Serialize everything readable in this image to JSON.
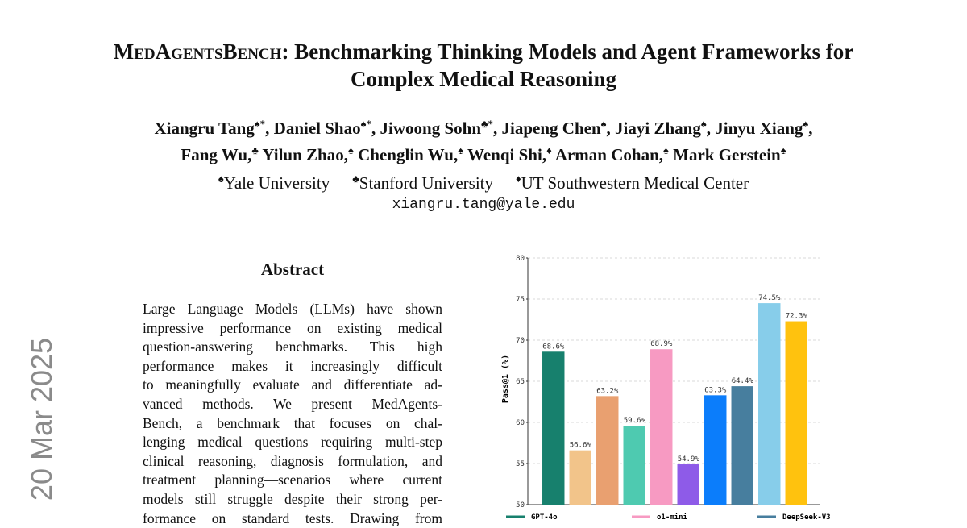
{
  "arxiv_stamp": "20 Mar 2025",
  "title": {
    "name": "MedAgentsBench",
    "rest": ": Benchmarking Thinking Models and Agent Frameworks for Complex Medical Reasoning"
  },
  "authors": {
    "lines": [
      [
        {
          "name": "Xiangru Tang",
          "marks": "♠*",
          "trail": ","
        },
        {
          "name": "Daniel Shao",
          "marks": "♠*",
          "trail": ","
        },
        {
          "name": "Jiwoong Sohn",
          "marks": "♣*",
          "trail": ","
        },
        {
          "name": "Jiapeng Chen",
          "marks": "♠",
          "trail": ","
        },
        {
          "name": "Jiayi Zhang",
          "marks": "♠",
          "trail": ","
        },
        {
          "name": "Jinyu Xiang",
          "marks": "♠",
          "trail": ","
        }
      ],
      [
        {
          "name": "Fang Wu,",
          "marks": "♣"
        },
        {
          "name": "Yilun Zhao,",
          "marks": "♠"
        },
        {
          "name": "Chenglin Wu,",
          "marks": "♠"
        },
        {
          "name": "Wenqi Shi,",
          "marks": "♦"
        },
        {
          "name": "Arman Cohan,",
          "marks": "♠"
        },
        {
          "name": "Mark Gerstein",
          "marks": "♠"
        }
      ]
    ]
  },
  "affiliations": [
    {
      "mark": "♠",
      "name": "Yale University"
    },
    {
      "mark": "♣",
      "name": "Stanford University"
    },
    {
      "mark": "♦",
      "name": "UT Southwestern Medical Center"
    }
  ],
  "email": "xiangru.tang@yale.edu",
  "abstract": {
    "heading": "Abstract",
    "lines": [
      "Large Language Models (LLMs) have shown",
      "impressive performance on existing medical",
      "question-answering benchmarks.  This high",
      "performance makes it increasingly difficult",
      "to meaningfully evaluate and differentiate ad-",
      "vanced methods. We present MedAgents-",
      "Bench, a benchmark that focuses on chal-",
      "lenging medical questions requiring multi-step",
      "clinical reasoning, diagnosis formulation, and",
      "treatment planning—scenarios where current",
      "models still struggle despite their strong per-",
      "formance on standard tests.  Drawing from"
    ]
  },
  "chart_data": {
    "type": "bar",
    "y_label": "Pass@1 (%)",
    "categories": [
      "GPT-4o",
      null,
      null,
      null,
      "o1-mini",
      null,
      null,
      "DeepSeek-V3",
      null,
      null
    ],
    "values": [
      68.6,
      56.6,
      63.2,
      59.6,
      68.9,
      54.9,
      63.3,
      64.4,
      74.5,
      72.3
    ],
    "value_labels": [
      "68.6%",
      "56.6%",
      "63.2%",
      "59.6%",
      "68.9%",
      "54.9%",
      "63.3%",
      "64.4%",
      "74.5%",
      "72.3%"
    ],
    "colors": [
      "#17806d",
      "#f2c48a",
      "#e9a070",
      "#4ecab0",
      "#f79ac2",
      "#8e5be8",
      "#0b7dfb",
      "#477e9e",
      "#87cdea",
      "#ffc20e"
    ],
    "ylim": [
      50,
      80
    ],
    "yticks": [
      50,
      55,
      60,
      65,
      70,
      75,
      80
    ],
    "grid": true
  }
}
